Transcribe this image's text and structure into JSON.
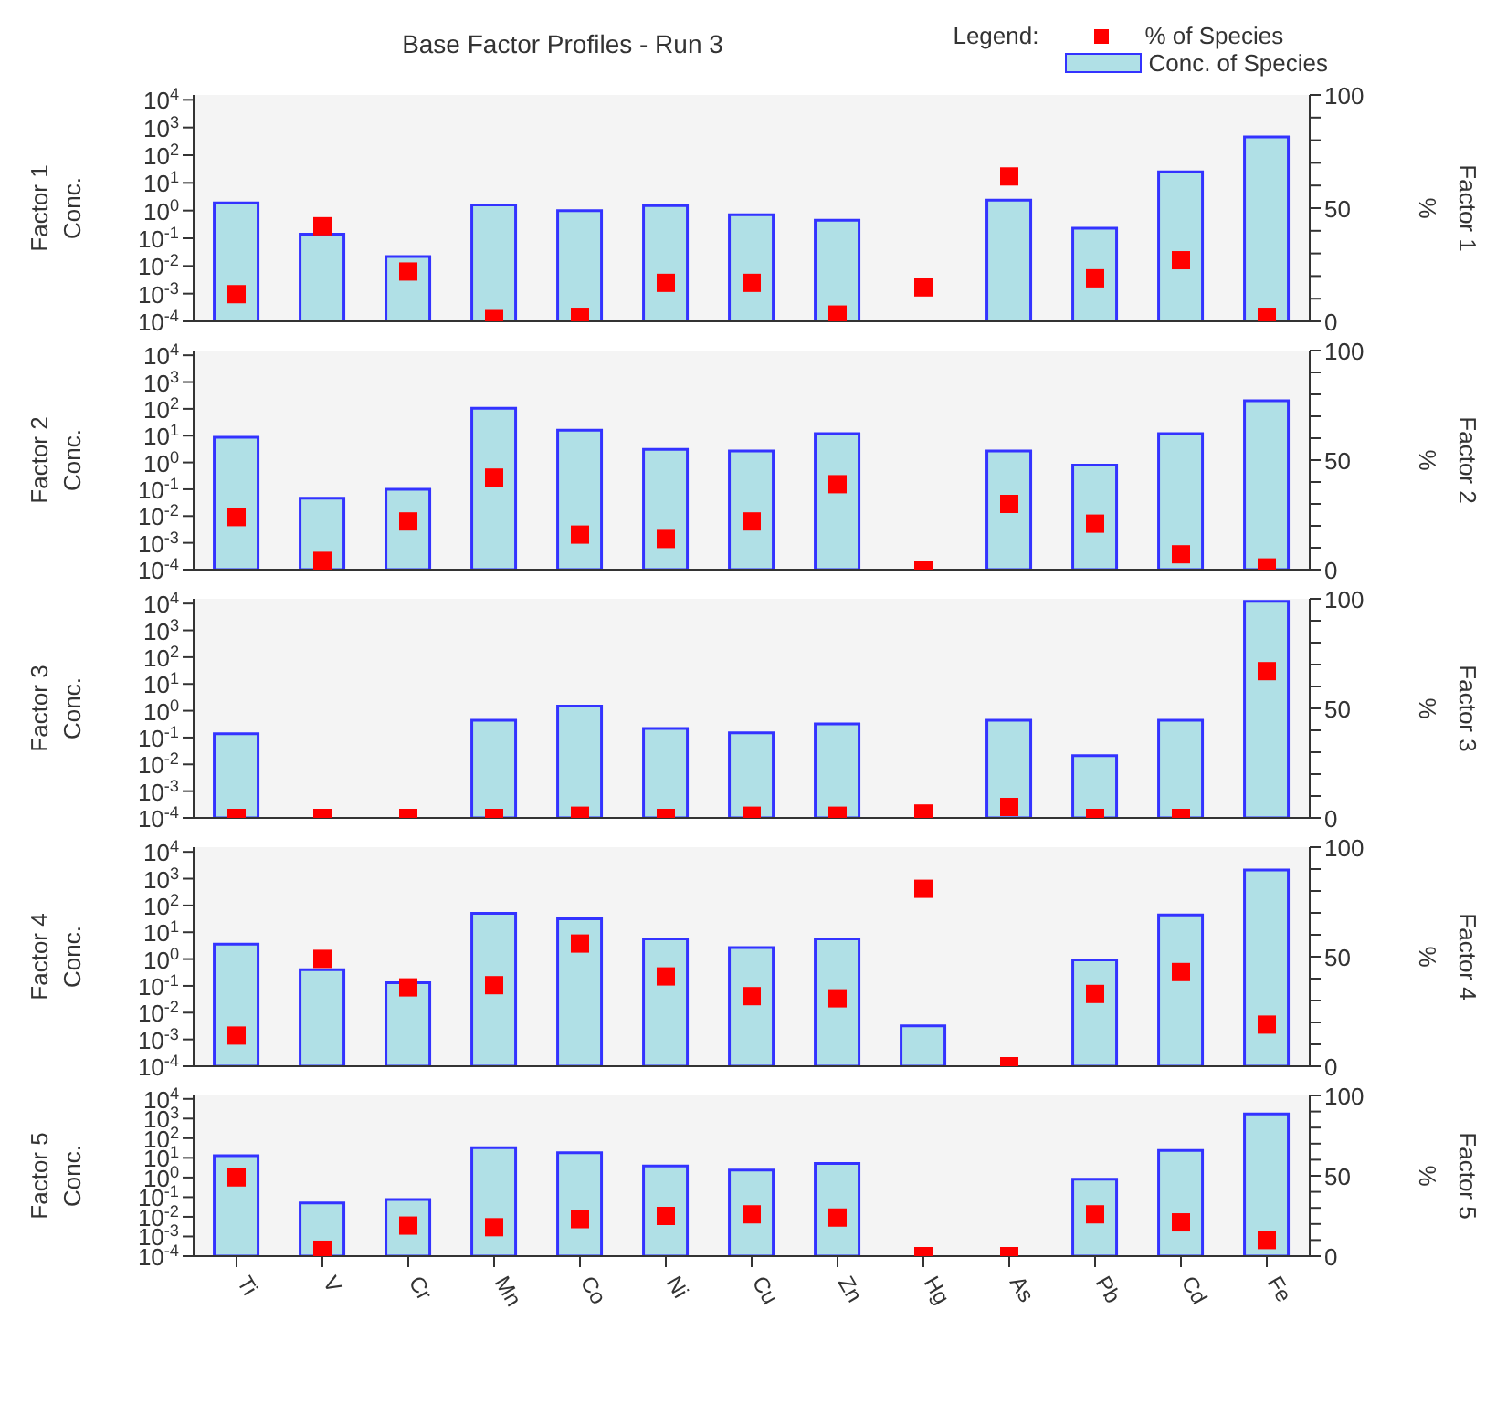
{
  "chart_data": [
    {
      "type": "bar",
      "title": "Base Factor Profiles - Run 3",
      "legend_title": "Legend:",
      "legend": "top right",
      "ylabel": "Factor 1\nConc.",
      "y2label": "%\nFactor 1",
      "log": "y",
      "tick_labels": "y",
      "marker": "square",
      "categories": [
        null,
        null,
        null,
        null,
        null,
        null,
        null,
        null,
        null,
        null,
        null,
        null,
        null
      ],
      "ylim": [
        0.0001,
        15000
      ],
      "yticks": [
        {
          "value": 0.0001,
          "label": "10$^{-4}$"
        },
        {
          "value": 0.001,
          "label": "10$^{-3}$"
        },
        {
          "value": 0.01,
          "label": "10$^{-2}$"
        },
        {
          "value": 0.1,
          "label": "10$^{-1}$"
        },
        {
          "value": 1,
          "label": "10$^{0}$"
        },
        {
          "value": 10,
          "label": "10$^{1}$"
        },
        {
          "value": 100,
          "label": "10$^{2}$"
        },
        {
          "value": 1000,
          "label": "10$^{3}$"
        },
        {
          "value": 10000,
          "label": "10$^{4}$"
        }
      ],
      "y2lim": [
        0,
        100
      ],
      "y2ticks": [
        0,
        {
          "value": 10,
          "label": null
        },
        {
          "value": 20,
          "label": null
        },
        {
          "value": 30,
          "label": null
        },
        {
          "value": 40,
          "label": null
        },
        50,
        {
          "value": 60,
          "label": null
        },
        {
          "value": 70,
          "label": null
        },
        {
          "value": 80,
          "label": null
        },
        {
          "value": 90,
          "label": null
        },
        100
      ],
      "series": [
        {
          "name": "% of Species",
          "type": "scatter",
          "axis": "y2",
          "color": "#ff0000",
          "values": [
            12,
            42,
            22,
            1,
            2,
            17,
            17,
            3,
            15,
            64,
            19,
            27,
            2
          ]
        },
        {
          "name": "Conc. of Species",
          "type": "bar",
          "color": "#b0e0e6",
          "values": [
            1.9,
            0.14,
            0.022,
            1.6,
            1.0,
            1.5,
            0.7,
            0.45,
            null,
            2.4,
            0.23,
            25,
            460
          ]
        }
      ]
    },
    {
      "type": "bar",
      "ylabel": "Factor 2\nConc.",
      "y2label": "%\nFactor 2",
      "log": "y",
      "tick_labels": "y",
      "marker": "square",
      "categories": [
        null,
        null,
        null,
        null,
        null,
        null,
        null,
        null,
        null,
        null,
        null,
        null,
        null
      ],
      "ylim": [
        0.0001,
        15000
      ],
      "yticks": [
        {
          "value": 0.0001,
          "label": "10$^{-4}$"
        },
        {
          "value": 0.001,
          "label": "10$^{-3}$"
        },
        {
          "value": 0.01,
          "label": "10$^{-2}$"
        },
        {
          "value": 0.1,
          "label": "10$^{-1}$"
        },
        {
          "value": 1,
          "label": "10$^{0}$"
        },
        {
          "value": 10,
          "label": "10$^{1}$"
        },
        {
          "value": 100,
          "label": "10$^{2}$"
        },
        {
          "value": 1000,
          "label": "10$^{3}$"
        },
        {
          "value": 10000,
          "label": "10$^{4}$"
        }
      ],
      "y2lim": [
        0,
        100
      ],
      "y2ticks": [
        0,
        {
          "value": 10,
          "label": null
        },
        {
          "value": 20,
          "label": null
        },
        {
          "value": 30,
          "label": null
        },
        {
          "value": 40,
          "label": null
        },
        50,
        {
          "value": 60,
          "label": null
        },
        {
          "value": 70,
          "label": null
        },
        {
          "value": 80,
          "label": null
        },
        {
          "value": 90,
          "label": null
        },
        100
      ],
      "series": [
        {
          "type": "scatter",
          "axis": "y2",
          "color": "#ff0000",
          "values": [
            24,
            4,
            22,
            42,
            16,
            14,
            22,
            39,
            0,
            30,
            21,
            7,
            1
          ]
        },
        {
          "type": "bar",
          "color": "#b0e0e6",
          "values": [
            8.7,
            0.046,
            0.1,
            105,
            16,
            3.1,
            2.7,
            12,
            null,
            2.7,
            0.8,
            12,
            200
          ]
        }
      ]
    },
    {
      "type": "bar",
      "ylabel": "Factor 3\nConc.",
      "y2label": "%\nFactor 3",
      "log": "y",
      "tick_labels": "y",
      "marker": "square",
      "categories": [
        null,
        null,
        null,
        null,
        null,
        null,
        null,
        null,
        null,
        null,
        null,
        null,
        null
      ],
      "ylim": [
        0.0001,
        15000
      ],
      "yticks": [
        {
          "value": 0.0001,
          "label": "10$^{-4}$"
        },
        {
          "value": 0.001,
          "label": "10$^{-3}$"
        },
        {
          "value": 0.01,
          "label": "10$^{-2}$"
        },
        {
          "value": 0.1,
          "label": "10$^{-1}$"
        },
        {
          "value": 1,
          "label": "10$^{0}$"
        },
        {
          "value": 10,
          "label": "10$^{1}$"
        },
        {
          "value": 100,
          "label": "10$^{2}$"
        },
        {
          "value": 1000,
          "label": "10$^{3}$"
        },
        {
          "value": 10000,
          "label": "10$^{4}$"
        }
      ],
      "y2lim": [
        0,
        100
      ],
      "y2ticks": [
        0,
        {
          "value": 10,
          "label": null
        },
        {
          "value": 20,
          "label": null
        },
        {
          "value": 30,
          "label": null
        },
        {
          "value": 40,
          "label": null
        },
        50,
        {
          "value": 60,
          "label": null
        },
        {
          "value": 70,
          "label": null
        },
        {
          "value": 80,
          "label": null
        },
        {
          "value": 90,
          "label": null
        },
        100
      ],
      "series": [
        {
          "type": "scatter",
          "axis": "y2",
          "color": "#ff0000",
          "values": [
            0,
            0,
            0,
            0,
            1,
            0,
            1,
            1,
            2,
            5,
            0,
            0,
            67
          ]
        },
        {
          "type": "bar",
          "color": "#b0e0e6",
          "values": [
            0.14,
            null,
            null,
            0.44,
            1.5,
            0.22,
            0.15,
            0.32,
            null,
            0.44,
            0.021,
            0.44,
            12000
          ]
        }
      ]
    },
    {
      "type": "bar",
      "ylabel": "Factor 4\nConc.",
      "y2label": "%\nFactor 4",
      "log": "y",
      "tick_labels": "y",
      "marker": "square",
      "categories": [
        null,
        null,
        null,
        null,
        null,
        null,
        null,
        null,
        null,
        null,
        null,
        null,
        null
      ],
      "ylim": [
        0.0001,
        15000
      ],
      "yticks": [
        {
          "value": 0.0001,
          "label": "10$^{-4}$"
        },
        {
          "value": 0.001,
          "label": "10$^{-3}$"
        },
        {
          "value": 0.01,
          "label": "10$^{-2}$"
        },
        {
          "value": 0.1,
          "label": "10$^{-1}$"
        },
        {
          "value": 1,
          "label": "10$^{0}$"
        },
        {
          "value": 10,
          "label": "10$^{1}$"
        },
        {
          "value": 100,
          "label": "10$^{2}$"
        },
        {
          "value": 1000,
          "label": "10$^{3}$"
        },
        {
          "value": 10000,
          "label": "10$^{4}$"
        }
      ],
      "y2lim": [
        0,
        100
      ],
      "y2ticks": [
        0,
        {
          "value": 10,
          "label": null
        },
        {
          "value": 20,
          "label": null
        },
        {
          "value": 30,
          "label": null
        },
        {
          "value": 40,
          "label": null
        },
        50,
        {
          "value": 60,
          "label": null
        },
        {
          "value": 70,
          "label": null
        },
        {
          "value": 80,
          "label": null
        },
        {
          "value": 90,
          "label": null
        },
        100
      ],
      "series": [
        {
          "type": "scatter",
          "axis": "y2",
          "color": "#ff0000",
          "values": [
            14,
            49,
            36,
            37,
            56,
            41,
            32,
            31,
            81,
            0,
            33,
            43,
            19
          ]
        },
        {
          "type": "bar",
          "color": "#b0e0e6",
          "values": [
            3.6,
            0.4,
            0.13,
            51,
            32,
            5.7,
            2.7,
            5.7,
            0.0032,
            null,
            0.93,
            44,
            2100
          ]
        }
      ]
    },
    {
      "type": "bar",
      "ylabel": "Factor 5\nConc.",
      "y2label": "%\nFactor 5",
      "log": "y",
      "marker": "square",
      "categories": [
        "Ti",
        "V",
        "Cr",
        "Mn",
        "Co",
        "Ni",
        "Cu",
        "Zn",
        "Hg",
        "As",
        "Pb",
        "Cd",
        "Fe"
      ],
      "ylim": [
        0.0001,
        15000
      ],
      "yticks": [
        {
          "value": 0.0001,
          "label": "10$^{-4}$"
        },
        {
          "value": 0.001,
          "label": "10$^{-3}$"
        },
        {
          "value": 0.01,
          "label": "10$^{-2}$"
        },
        {
          "value": 0.1,
          "label": "10$^{-1}$"
        },
        {
          "value": 1,
          "label": "10$^{0}$"
        },
        {
          "value": 10,
          "label": "10$^{1}$"
        },
        {
          "value": 100,
          "label": "10$^{2}$"
        },
        {
          "value": 1000,
          "label": "10$^{3}$"
        },
        {
          "value": 10000,
          "label": "10$^{4}$"
        }
      ],
      "y2lim": [
        0,
        100
      ],
      "y2ticks": [
        0,
        {
          "value": 10,
          "label": null
        },
        {
          "value": 20,
          "label": null
        },
        {
          "value": 30,
          "label": null
        },
        {
          "value": 40,
          "label": null
        },
        50,
        {
          "value": 60,
          "label": null
        },
        {
          "value": 70,
          "label": null
        },
        {
          "value": 80,
          "label": null
        },
        {
          "value": 90,
          "label": null
        },
        100
      ],
      "series": [
        {
          "type": "scatter",
          "axis": "y2",
          "color": "#ff0000",
          "values": [
            49,
            4,
            19,
            18,
            23,
            25,
            26,
            24,
            0,
            0,
            26,
            21,
            10
          ]
        },
        {
          "type": "bar",
          "color": "#b0e0e6",
          "values": [
            13,
            0.051,
            0.076,
            33,
            18,
            3.9,
            2.4,
            5.2,
            null,
            null,
            0.83,
            24,
            1700
          ]
        }
      ]
    }
  ]
}
